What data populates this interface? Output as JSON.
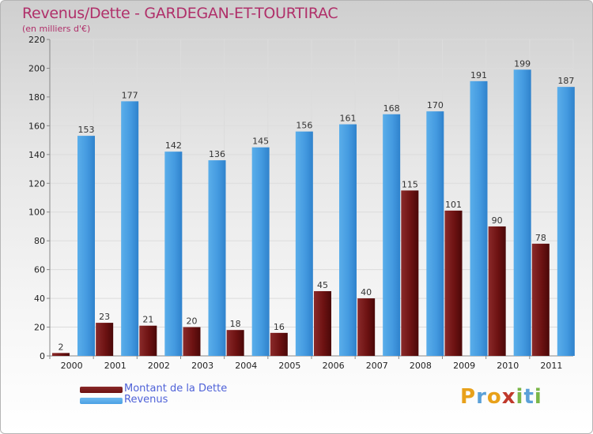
{
  "title": "Revenus/Dette - GARDEGAN-ET-TOURTIRAC",
  "subtitle": "(en milliers d'€)",
  "colors": {
    "dette": "#6b0f0f",
    "revenus": "#4a9fe3"
  },
  "legend": {
    "dette": "Montant de la Dette",
    "revenus": "Revenus"
  },
  "logo": "Proxiti",
  "chart_data": {
    "type": "bar",
    "title": "Revenus/Dette - GARDEGAN-ET-TOURTIRAC",
    "ylabel": "(en milliers d'€)",
    "xlabel": "",
    "ylim": [
      0,
      220
    ],
    "yticks": [
      0,
      20,
      40,
      60,
      80,
      100,
      120,
      140,
      160,
      180,
      200,
      220
    ],
    "grid": true,
    "legend_position": "bottom-left",
    "categories": [
      "2000",
      "2001",
      "2002",
      "2003",
      "2004",
      "2005",
      "2006",
      "2007",
      "2008",
      "2009",
      "2010",
      "2011"
    ],
    "series": [
      {
        "name": "Montant de la Dette",
        "values": [
          2,
          23,
          21,
          20,
          18,
          16,
          45,
          40,
          115,
          101,
          90,
          78
        ]
      },
      {
        "name": "Revenus",
        "values": [
          153,
          177,
          142,
          136,
          145,
          156,
          161,
          168,
          170,
          191,
          199,
          187
        ]
      }
    ]
  }
}
